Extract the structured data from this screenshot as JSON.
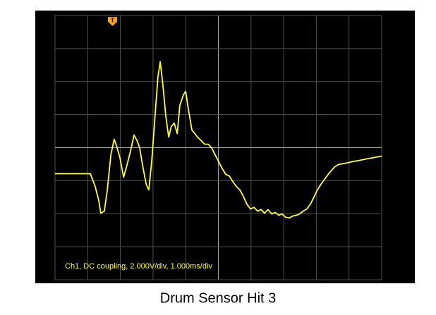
{
  "chart_data": {
    "type": "line",
    "title": "Drum Sensor Hit 3",
    "annotation": "Ch1, DC coupling, 2.000V/div, 1.000ms/div",
    "trigger_label": "T",
    "xlim": [
      0,
      10
    ],
    "xticks": [
      0,
      1,
      2,
      3,
      4,
      5,
      6,
      7,
      8,
      9,
      10
    ],
    "ylim": [
      -8,
      8
    ],
    "yticks": [
      -8,
      -6,
      -4,
      -2,
      0,
      2,
      4,
      6,
      8
    ],
    "grid": true,
    "series": [
      {
        "color": "#ffff33",
        "x": [
          0,
          1.08,
          1.23,
          1.34,
          1.4,
          1.51,
          1.6,
          1.71,
          1.81,
          1.9,
          1.99,
          2.1,
          2.2,
          2.31,
          2.42,
          2.51,
          2.59,
          2.68,
          2.79,
          2.87,
          2.96,
          3.07,
          3.15,
          3.22,
          3.3,
          3.39,
          3.48,
          3.56,
          3.65,
          3.74,
          3.82,
          3.93,
          4.0,
          4.08,
          4.19,
          4.28,
          4.36,
          4.47,
          4.58,
          4.69,
          4.79,
          4.9,
          5.01,
          5.12,
          5.23,
          5.33,
          5.44,
          5.55,
          5.66,
          5.77,
          5.87,
          5.98,
          6.09,
          6.2,
          6.31,
          6.41,
          6.52,
          6.63,
          6.74,
          6.85,
          6.95,
          7.06,
          7.17,
          7.28,
          7.39,
          7.49,
          7.6,
          7.71,
          7.82,
          7.93,
          8.03,
          8.14,
          8.25,
          8.36,
          8.47,
          8.57,
          8.68,
          8.9,
          9.11,
          9.33,
          9.55,
          9.76,
          10
        ],
        "values": [
          -1.58,
          -1.58,
          -2.35,
          -3.2,
          -3.97,
          -3.84,
          -2.56,
          -0.43,
          0.51,
          0,
          -0.64,
          -1.79,
          -1.07,
          -0.21,
          0.77,
          0.43,
          0,
          -1.07,
          -2.22,
          -2.56,
          -0.85,
          2.13,
          4.26,
          5.2,
          3.84,
          1.92,
          0.64,
          1.28,
          1.49,
          0.85,
          2.56,
          3.2,
          3.41,
          2.35,
          1.07,
          0.85,
          0.64,
          0.43,
          0.21,
          0.21,
          0,
          -0.43,
          -0.85,
          -1.28,
          -1.62,
          -1.71,
          -2.05,
          -2.35,
          -2.56,
          -2.98,
          -3.41,
          -3.71,
          -3.62,
          -3.84,
          -3.75,
          -3.97,
          -3.75,
          -4.01,
          -3.92,
          -4.09,
          -4.01,
          -4.22,
          -4.26,
          -4.14,
          -4.09,
          -4.01,
          -3.84,
          -3.71,
          -3.41,
          -2.98,
          -2.56,
          -2.22,
          -1.92,
          -1.62,
          -1.36,
          -1.15,
          -1.02,
          -0.94,
          -0.85,
          -0.77,
          -0.68,
          -0.6,
          -0.51
        ]
      }
    ]
  }
}
